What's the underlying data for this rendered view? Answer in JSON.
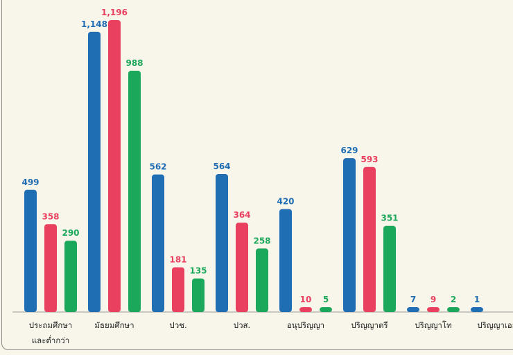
{
  "chart_data": {
    "type": "bar",
    "categories": [
      "ประถมศึกษา\nและต่ำกว่า",
      "มัธยมศึกษา",
      "ปวช.",
      "ปวส.",
      "อนุปริญญา",
      "ปริญญาตรี",
      "ปริญญาโท",
      "ปริญญาเอก"
    ],
    "series": [
      {
        "color": "#1f6db3",
        "values": [
          499,
          1148,
          562,
          564,
          420,
          629,
          7,
          1
        ],
        "value_labels": [
          "499",
          "1,148",
          "562",
          "564",
          "420",
          "629",
          "7",
          "1"
        ]
      },
      {
        "color": "#e9405f",
        "values": [
          358,
          1196,
          181,
          364,
          10,
          593,
          9,
          null
        ],
        "value_labels": [
          "358",
          "1,196",
          "181",
          "364",
          "10",
          "593",
          "9",
          null
        ]
      },
      {
        "color": "#1ca85b",
        "values": [
          290,
          988,
          135,
          258,
          5,
          351,
          2,
          null
        ],
        "value_labels": [
          "290",
          "988",
          "135",
          "258",
          "5",
          "351",
          "2",
          null
        ]
      }
    ]
  }
}
